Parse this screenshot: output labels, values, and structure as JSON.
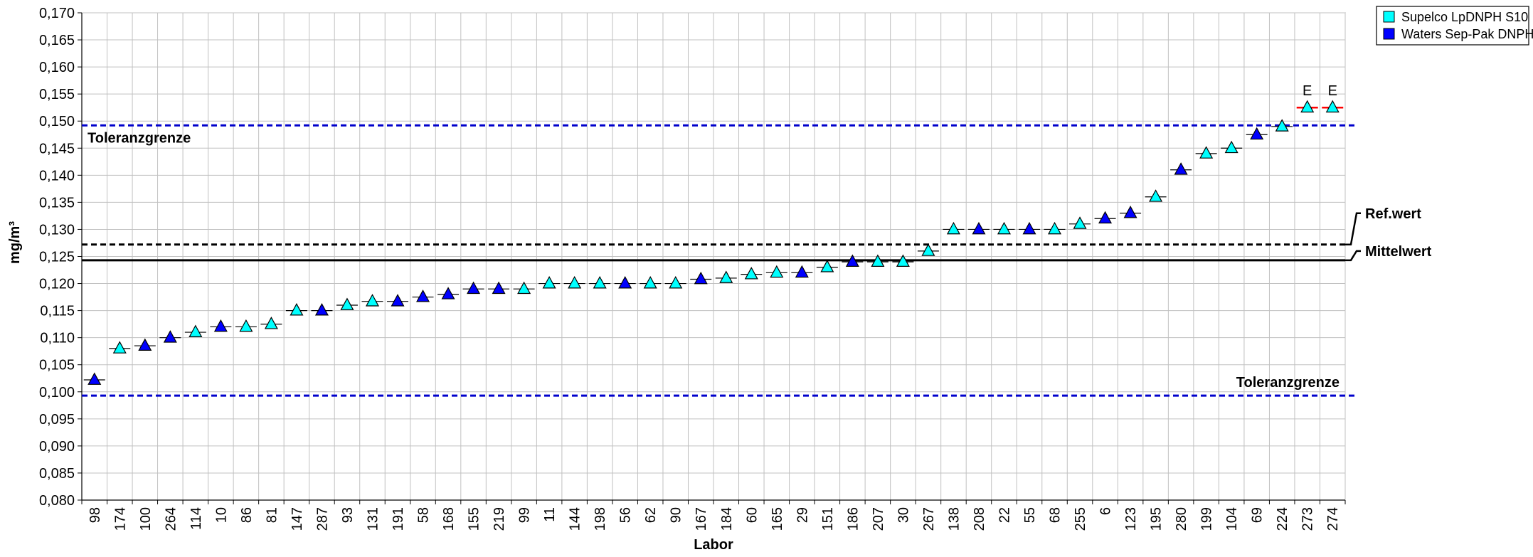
{
  "chart_data": {
    "type": "scatter",
    "xlabel": "Labor",
    "ylabel": "mg/m³",
    "ylim": [
      0.08,
      0.17
    ],
    "ytick_step": 0.005,
    "decimal_separator": ",",
    "grid": true,
    "legend_position": "top-right",
    "categories": [
      "98",
      "174",
      "100",
      "264",
      "114",
      "10",
      "86",
      "81",
      "147",
      "287",
      "93",
      "131",
      "191",
      "58",
      "168",
      "155",
      "219",
      "99",
      "11",
      "144",
      "198",
      "56",
      "62",
      "90",
      "167",
      "184",
      "60",
      "165",
      "29",
      "151",
      "186",
      "207",
      "30",
      "267",
      "138",
      "208",
      "22",
      "55",
      "68",
      "255",
      "6",
      "123",
      "195",
      "280",
      "199",
      "104",
      "69",
      "224",
      "273",
      "274"
    ],
    "series": [
      {
        "name": "Supelco LpDNPH S10",
        "color": "#00FFFF",
        "points": [
          {
            "x": "174",
            "y": 0.108
          },
          {
            "x": "114",
            "y": 0.111
          },
          {
            "x": "86",
            "y": 0.112
          },
          {
            "x": "81",
            "y": 0.1125
          },
          {
            "x": "147",
            "y": 0.115
          },
          {
            "x": "93",
            "y": 0.116
          },
          {
            "x": "131",
            "y": 0.1167
          },
          {
            "x": "99",
            "y": 0.119
          },
          {
            "x": "11",
            "y": 0.12
          },
          {
            "x": "144",
            "y": 0.12
          },
          {
            "x": "198",
            "y": 0.12
          },
          {
            "x": "62",
            "y": 0.12
          },
          {
            "x": "90",
            "y": 0.12
          },
          {
            "x": "184",
            "y": 0.121
          },
          {
            "x": "60",
            "y": 0.1217
          },
          {
            "x": "165",
            "y": 0.122
          },
          {
            "x": "151",
            "y": 0.123
          },
          {
            "x": "207",
            "y": 0.124
          },
          {
            "x": "30",
            "y": 0.124
          },
          {
            "x": "267",
            "y": 0.126
          },
          {
            "x": "138",
            "y": 0.13
          },
          {
            "x": "22",
            "y": 0.13
          },
          {
            "x": "68",
            "y": 0.13
          },
          {
            "x": "255",
            "y": 0.131
          },
          {
            "x": "195",
            "y": 0.136
          },
          {
            "x": "199",
            "y": 0.144
          },
          {
            "x": "104",
            "y": 0.145
          },
          {
            "x": "224",
            "y": 0.149
          },
          {
            "x": "273",
            "y": 0.1525,
            "flag": "E"
          },
          {
            "x": "274",
            "y": 0.1525,
            "flag": "E"
          }
        ]
      },
      {
        "name": "Waters Sep-Pak DNPH",
        "color": "#0000FF",
        "points": [
          {
            "x": "98",
            "y": 0.1022
          },
          {
            "x": "100",
            "y": 0.1085
          },
          {
            "x": "264",
            "y": 0.11
          },
          {
            "x": "10",
            "y": 0.112
          },
          {
            "x": "287",
            "y": 0.115
          },
          {
            "x": "191",
            "y": 0.1167
          },
          {
            "x": "58",
            "y": 0.1175
          },
          {
            "x": "168",
            "y": 0.118
          },
          {
            "x": "155",
            "y": 0.119
          },
          {
            "x": "219",
            "y": 0.119
          },
          {
            "x": "56",
            "y": 0.12
          },
          {
            "x": "167",
            "y": 0.1208
          },
          {
            "x": "29",
            "y": 0.122
          },
          {
            "x": "186",
            "y": 0.124
          },
          {
            "x": "208",
            "y": 0.13
          },
          {
            "x": "55",
            "y": 0.13
          },
          {
            "x": "6",
            "y": 0.132
          },
          {
            "x": "123",
            "y": 0.133
          },
          {
            "x": "280",
            "y": 0.141
          },
          {
            "x": "69",
            "y": 0.1475
          }
        ]
      }
    ],
    "reference_lines": [
      {
        "label": "Toleranzgrenze",
        "value": 0.1492,
        "style": "dashed",
        "color": "#0000CC",
        "label_position": "top-left"
      },
      {
        "label": "Toleranzgrenze",
        "value": 0.0993,
        "style": "dashed",
        "color": "#0000CC",
        "label_position": "right"
      },
      {
        "label": "Ref.wert",
        "value": 0.1272,
        "style": "dashed",
        "color": "#000000",
        "label_position": "right-callout"
      },
      {
        "label": "Mittelwert",
        "value": 0.1243,
        "style": "solid",
        "color": "#000000",
        "label_position": "right-callout"
      }
    ],
    "flag_marker_color": "#FF0000"
  }
}
